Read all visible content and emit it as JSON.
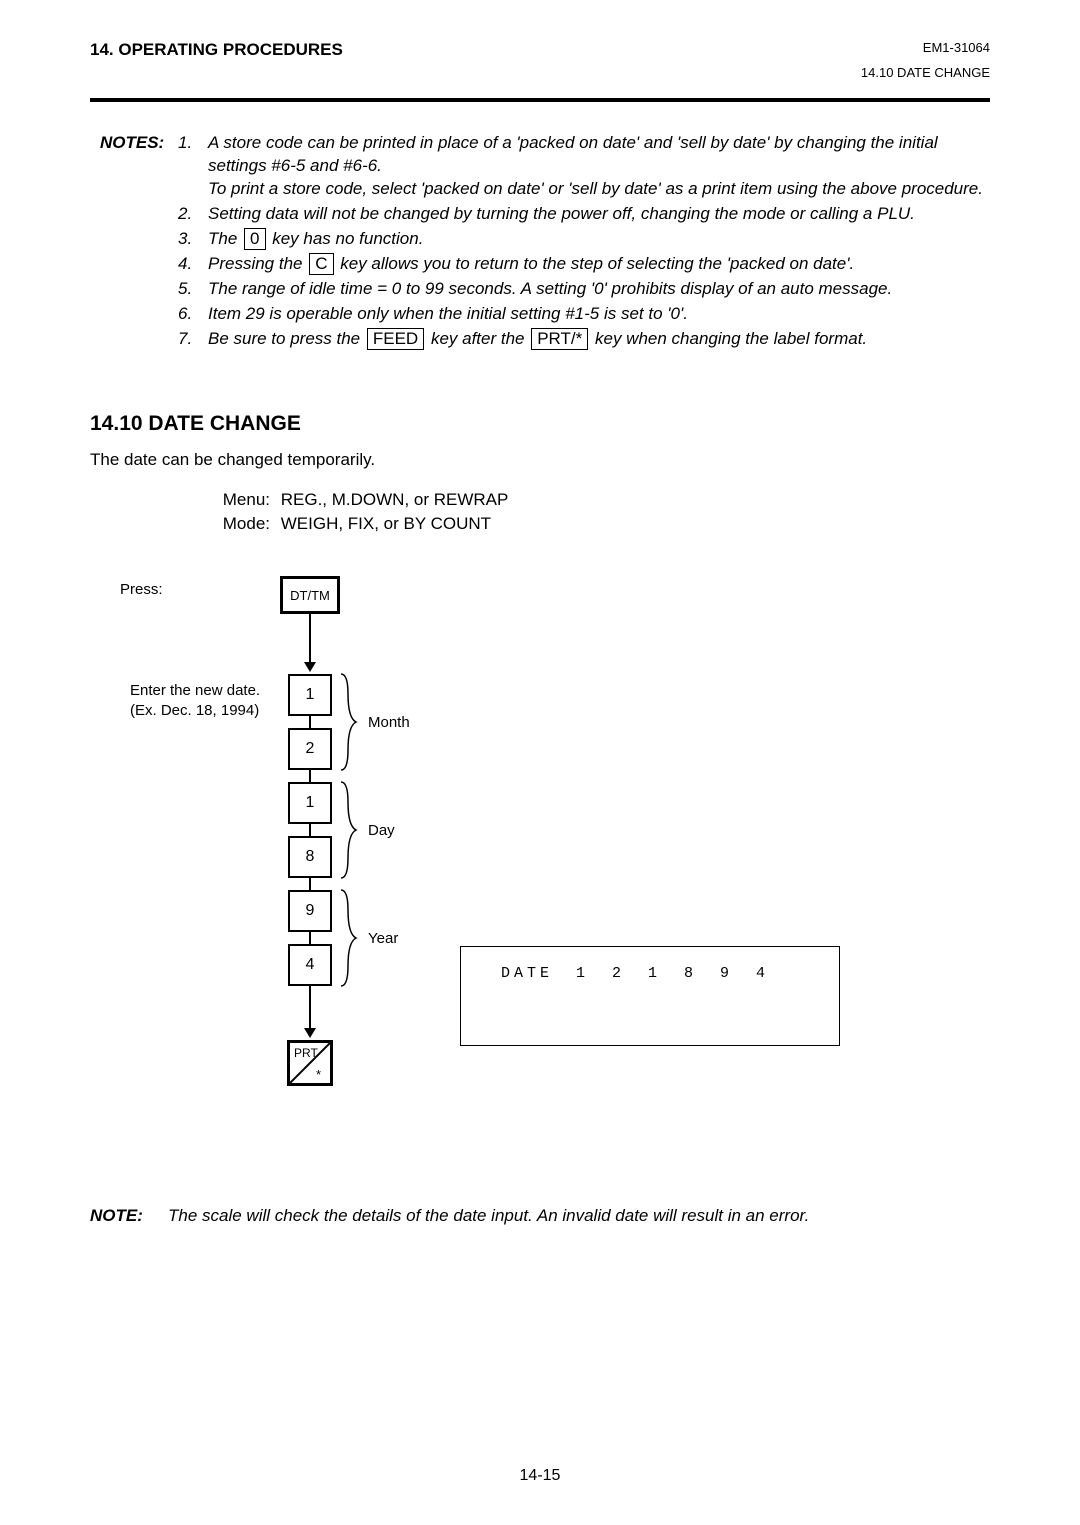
{
  "header": {
    "left": "14. OPERATING PROCEDURES",
    "code": "EM1-31064",
    "right": "14.10 DATE CHANGE"
  },
  "notes_label": "NOTES:",
  "notes": [
    {
      "num": "1.",
      "pre": "A store code can be printed in place of a 'packed on date' and 'sell by date' by changing the initial settings #6-5 and #6-6.\nTo print a store code, select 'packed on date' or 'sell by date' as a print item using  the above procedure."
    },
    {
      "num": "2.",
      "pre": "Setting data will not be changed by turning the power off, changing the mode or calling a PLU."
    },
    {
      "num": "3.",
      "pre": "The ",
      "key": "0",
      "post": " key has no function."
    },
    {
      "num": "4.",
      "pre": "Pressing the ",
      "key": "C",
      "post": " key allows you to return to the step of selecting the 'packed on date'."
    },
    {
      "num": "5.",
      "pre": "The range of idle time = 0 to 99 seconds.  A setting '0' prohibits display of an auto message."
    },
    {
      "num": "6.",
      "pre": "Item 29 is operable only when the initial setting #1-5 is set to '0'."
    },
    {
      "num": "7.",
      "pre": "Be sure to press the ",
      "key": "FEED",
      "mid": " key after the ",
      "key2": "PRT/*",
      "post": " key when changing the label format."
    }
  ],
  "section_title": "14.10 DATE CHANGE",
  "intro": "The date can be changed temporarily.",
  "menu_label": "Menu:",
  "menu_value": "REG., M.DOWN, or REWRAP",
  "mode_label": "Mode:",
  "mode_value": "WEIGH, FIX, or BY COUNT",
  "press_label": "Press:",
  "enter_label_l1": "Enter the new date.",
  "enter_label_l2": "(Ex. Dec. 18, 1994)",
  "flow": {
    "start_key": "DT/TM",
    "digits": [
      "1",
      "2",
      "1",
      "8",
      "9",
      "4"
    ],
    "groups": [
      {
        "label": "Month"
      },
      {
        "label": "Day"
      },
      {
        "label": "Year"
      }
    ],
    "end_key_top": "PRT",
    "end_key_bot": "*"
  },
  "display_text": "DATE  1  2  1  8  9  4",
  "footer_note_label": "NOTE:",
  "footer_note_text": "The scale will check the details of the date input.  An invalid date will result in an error.",
  "page_number": "14-15"
}
